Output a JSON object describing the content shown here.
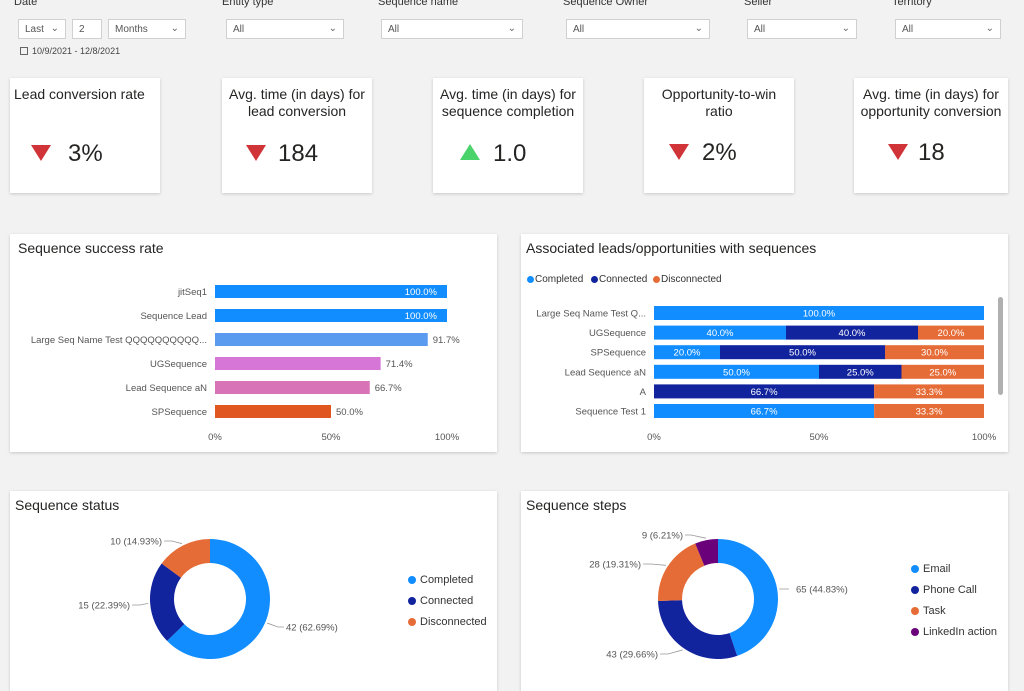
{
  "filters": {
    "date": {
      "label": "Date",
      "mode": "Last",
      "count": "2",
      "unit": "Months",
      "range": "10/9/2021 - 12/8/2021"
    },
    "entity_type": {
      "label": "Entity type",
      "value": "All"
    },
    "sequence_name": {
      "label": "Sequence name",
      "value": "All"
    },
    "sequence_owner": {
      "label": "Sequence Owner",
      "value": "All"
    },
    "seller": {
      "label": "Seller",
      "value": "All"
    },
    "territory": {
      "label": "Territory",
      "value": "All"
    }
  },
  "kpis": [
    {
      "title": "Lead conversion rate",
      "value": "3%",
      "trend": "down"
    },
    {
      "title": "Avg. time (in days) for lead conversion",
      "value": "184",
      "trend": "down"
    },
    {
      "title": "Avg. time (in days) for sequence completion",
      "value": "1.0",
      "trend": "up"
    },
    {
      "title": "Opportunity-to-win ratio",
      "value": "2%",
      "trend": "down"
    },
    {
      "title": "Avg. time (in days) for opportunity conversion",
      "value": "18",
      "trend": "down"
    }
  ],
  "colors": {
    "completed": "#118dff",
    "connected": "#12239e",
    "disconnected": "#e66c37",
    "linkedin": "#6b007b",
    "pink": "#e044a7",
    "violet": "#744ec2",
    "down": "#d13438",
    "up": "#4bd36b"
  },
  "chart_data": [
    {
      "type": "bar",
      "title": "Sequence success rate",
      "categories": [
        "jitSeq1",
        "Sequence Lead",
        "Large Seq Name Test QQQQQQQQQQ...",
        "UGSequence",
        "Lead Sequence aN",
        "SPSequence"
      ],
      "values": [
        100.0,
        100.0,
        91.7,
        71.4,
        66.7,
        50.0
      ],
      "value_labels": [
        "100.0%",
        "100.0%",
        "91.7%",
        "71.4%",
        "66.7%",
        "50.0%"
      ],
      "bar_colors": [
        "#118dff",
        "#118dff",
        "#5b9bef",
        "#d677d7",
        "#d873b8",
        "#e0571f"
      ],
      "xlim": [
        0,
        100
      ],
      "x_ticks": [
        "0%",
        "50%",
        "100%"
      ]
    },
    {
      "type": "bar",
      "stacked": true,
      "title": "Associated leads/opportunities with sequences",
      "categories": [
        "Large Seq Name Test Q...",
        "UGSequence",
        "SPSequence",
        "Lead Sequence aN",
        "A",
        "Sequence Test 1"
      ],
      "series": [
        {
          "name": "Completed",
          "values": [
            100.0,
            40.0,
            20.0,
            50.0,
            0,
            66.7
          ],
          "labels": [
            "100.0%",
            "40.0%",
            "20.0%",
            "50.0%",
            "",
            "66.7%"
          ]
        },
        {
          "name": "Connected",
          "values": [
            0,
            40.0,
            50.0,
            25.0,
            66.7,
            0
          ],
          "labels": [
            "",
            "40.0%",
            "50.0%",
            "25.0%",
            "66.7%",
            ""
          ]
        },
        {
          "name": "Disconnected",
          "values": [
            0,
            20.0,
            30.0,
            25.0,
            33.3,
            33.3
          ],
          "labels": [
            "",
            "20.0%",
            "30.0%",
            "25.0%",
            "33.3%",
            "33.3%"
          ]
        }
      ],
      "xlim": [
        0,
        100
      ],
      "x_ticks": [
        "0%",
        "50%",
        "100%"
      ]
    },
    {
      "type": "pie",
      "donut": true,
      "title": "Sequence status",
      "slices": [
        {
          "name": "Completed",
          "value": 42,
          "label": "42 (62.69%)"
        },
        {
          "name": "Connected",
          "value": 15,
          "label": "15 (22.39%)"
        },
        {
          "name": "Disconnected",
          "value": 10,
          "label": "10 (14.93%)"
        }
      ]
    },
    {
      "type": "pie",
      "donut": true,
      "title": "Sequence steps",
      "slices": [
        {
          "name": "Email",
          "value": 65,
          "label": "65 (44.83%)"
        },
        {
          "name": "Phone Call",
          "value": 43,
          "label": "43 (29.66%)"
        },
        {
          "name": "Task",
          "value": 28,
          "label": "28 (19.31%)"
        },
        {
          "name": "LinkedIn action",
          "value": 9,
          "label": "9 (6.21%)"
        }
      ]
    }
  ]
}
